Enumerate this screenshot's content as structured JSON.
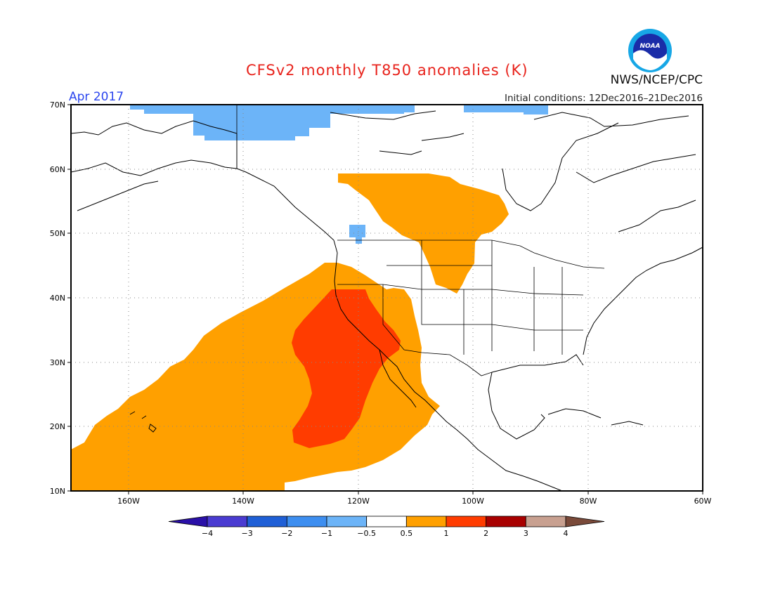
{
  "title": "CFSv2 monthly T850 anomalies (K)",
  "period": "Apr 2017",
  "initial_conditions": "Initial conditions: 12Dec2016–21Dec2016",
  "agency": "NWS/NCEP/CPC",
  "logo_text": "NOAA",
  "map": {
    "lon_range": [
      -170,
      -60
    ],
    "lat_range": [
      10,
      70
    ],
    "lat_labels": [
      "10N",
      "20N",
      "30N",
      "40N",
      "50N",
      "60N",
      "70N"
    ],
    "lon_labels": [
      "160W",
      "140W",
      "120W",
      "100W",
      "80W",
      "60W"
    ],
    "grid": "dotted"
  },
  "colorbar": {
    "labels": [
      "−4",
      "−3",
      "−2",
      "−1",
      "−0.5",
      "0.5",
      "1",
      "2",
      "3",
      "4"
    ],
    "colors": [
      "#2a10a8",
      "#4a3bd1",
      "#1f5fd6",
      "#3d8ef0",
      "#6cb4f8",
      "#ffffff",
      "#ffa000",
      "#ff3c00",
      "#a80000",
      "#c8a090",
      "#7a4a3a"
    ]
  },
  "anomaly_regions": [
    {
      "name": "arctic-cool-anomaly",
      "range": "−1 to −0.5",
      "color": "#6cb4f8"
    },
    {
      "name": "pacific-warm-anomaly",
      "range": "0.5 to 1",
      "color": "#ffa000"
    },
    {
      "name": "california-baja-warm-core",
      "range": "1 to 2",
      "color": "#ff3c00"
    },
    {
      "name": "canada-warm-anomaly",
      "range": "0.5 to 1",
      "color": "#ffa000"
    }
  ]
}
